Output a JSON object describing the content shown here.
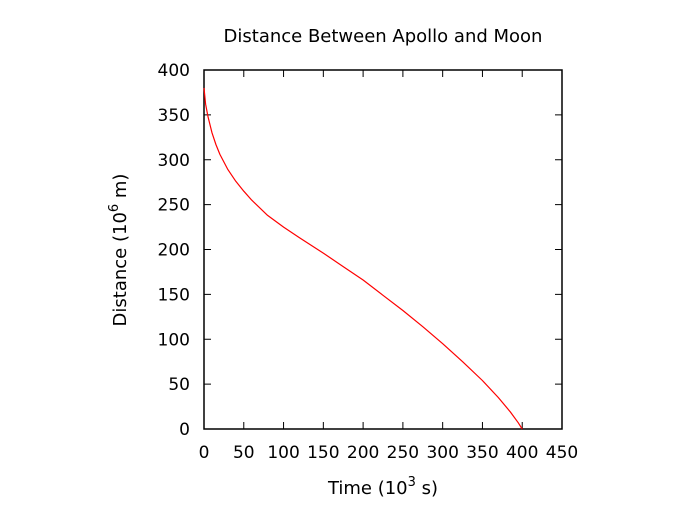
{
  "chart_data": {
    "type": "line",
    "title": "Distance Between Apollo and Moon",
    "xlabel": {
      "base": "Time (10",
      "exp": "3",
      "tail": " s)"
    },
    "ylabel": {
      "base": "Distance (10",
      "exp": "6",
      "tail": " m)"
    },
    "xlim": [
      0,
      450
    ],
    "ylim": [
      0,
      400
    ],
    "xticks": [
      0,
      50,
      100,
      150,
      200,
      250,
      300,
      350,
      400,
      450
    ],
    "yticks": [
      0,
      50,
      100,
      150,
      200,
      250,
      300,
      350,
      400
    ],
    "grid": false,
    "series": [
      {
        "color": "#ff0000",
        "x": [
          0,
          2,
          5,
          10,
          15,
          20,
          30,
          40,
          50,
          60,
          80,
          100,
          120,
          150,
          175,
          200,
          225,
          250,
          275,
          300,
          325,
          350,
          370,
          385,
          395,
          400
        ],
        "y": [
          380,
          362,
          348,
          330,
          317,
          306,
          289,
          276,
          265,
          255,
          238,
          225,
          213,
          196,
          181,
          166,
          149,
          132,
          114,
          95,
          75,
          54,
          35,
          19,
          7,
          0
        ]
      }
    ]
  }
}
